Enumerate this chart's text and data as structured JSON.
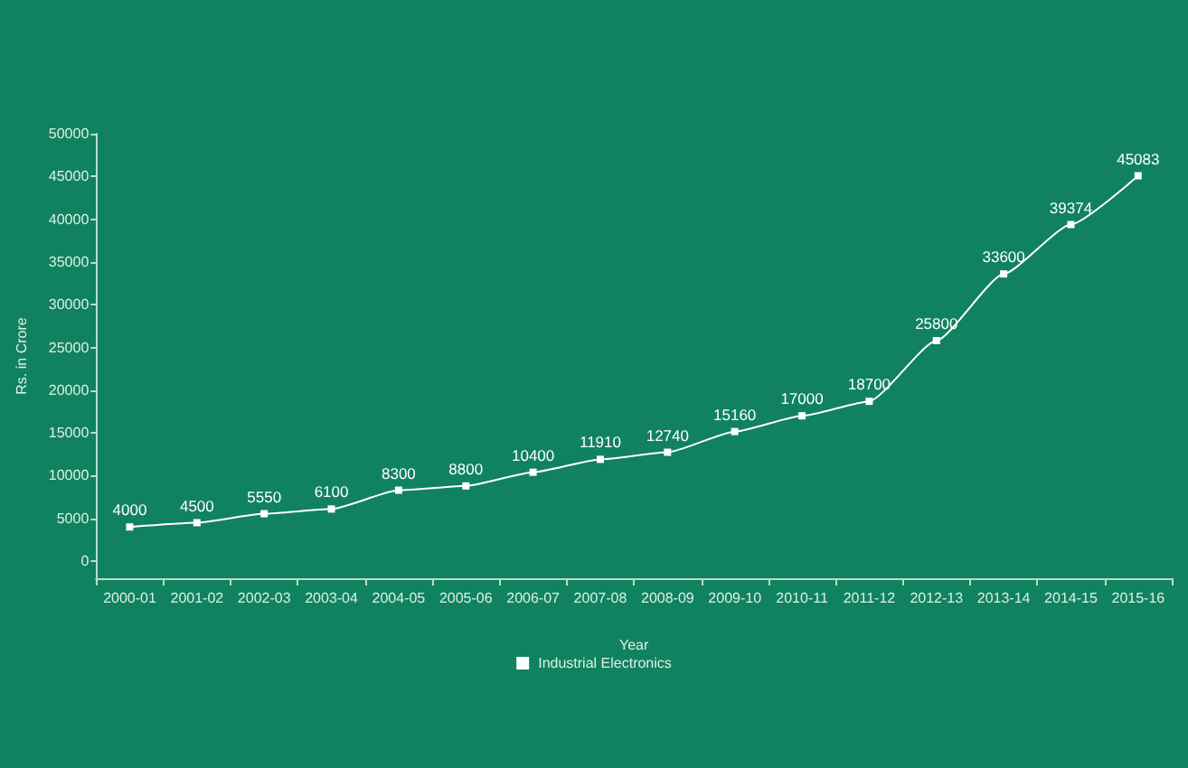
{
  "chart_data": {
    "type": "line",
    "xlabel": "Year",
    "ylabel": "Rs. in Crore",
    "categories": [
      "2000-01",
      "2001-02",
      "2002-03",
      "2003-04",
      "2004-05",
      "2005-06",
      "2006-07",
      "2007-08",
      "2008-09",
      "2009-10",
      "2010-11",
      "2011-12",
      "2012-13",
      "2013-14",
      "2014-15",
      "2015-16"
    ],
    "series": [
      {
        "name": "Industrial Electronics",
        "color": "#ffffff",
        "values": [
          4000,
          4500,
          5550,
          6100,
          8300,
          8800,
          10400,
          11910,
          12740,
          15160,
          17000,
          18700,
          25800,
          33600,
          39374,
          45083
        ]
      }
    ],
    "ylim": [
      -2000,
      50000
    ],
    "yticks": [
      0,
      5000,
      10000,
      15000,
      20000,
      25000,
      30000,
      35000,
      40000,
      45000,
      50000
    ],
    "grid": false,
    "legend": "bottom",
    "marker": "square",
    "line_style": "solid",
    "data_labels": true
  }
}
